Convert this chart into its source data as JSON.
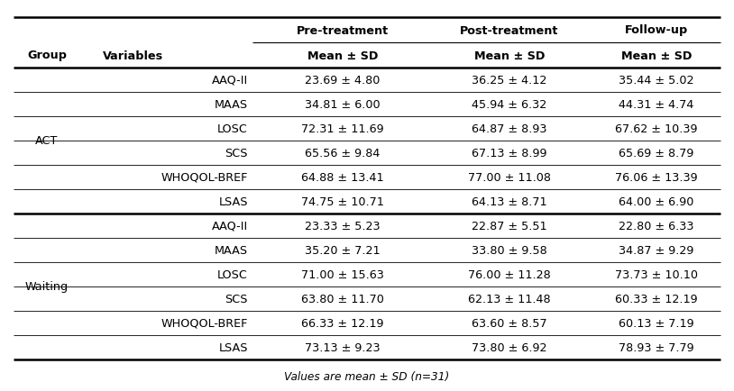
{
  "col_headers_line1": [
    "Pre-treatment",
    "Post-treatment",
    "Follow-up"
  ],
  "col_headers_line2_left": [
    "Group",
    "Variables"
  ],
  "col_headers_line2_right": [
    "Mean ± SD",
    "Mean ± SD",
    "Mean ± SD"
  ],
  "groups": [
    {
      "group_label": "ACT",
      "rows": [
        [
          "AAQ-II",
          "23.69 ± 4.80",
          "36.25 ± 4.12",
          "35.44 ± 5.02"
        ],
        [
          "MAAS",
          "34.81 ± 6.00",
          "45.94 ± 6.32",
          "44.31 ± 4.74"
        ],
        [
          "LOSC",
          "72.31 ± 11.69",
          "64.87 ± 8.93",
          "67.62 ± 10.39"
        ],
        [
          "SCS",
          "65.56 ± 9.84",
          "67.13 ± 8.99",
          "65.69 ± 8.79"
        ],
        [
          "WHOQOL-BREF",
          "64.88 ± 13.41",
          "77.00 ± 11.08",
          "76.06 ± 13.39"
        ],
        [
          "LSAS",
          "74.75 ± 10.71",
          "64.13 ± 8.71",
          "64.00 ± 6.90"
        ]
      ]
    },
    {
      "group_label": "Waiting",
      "rows": [
        [
          "AAQ-II",
          "23.33 ± 5.23",
          "22.87 ± 5.51",
          "22.80 ± 6.33"
        ],
        [
          "MAAS",
          "35.20 ± 7.21",
          "33.80 ± 9.58",
          "34.87 ± 9.29"
        ],
        [
          "LOSC",
          "71.00 ± 15.63",
          "76.00 ± 11.28",
          "73.73 ± 10.10"
        ],
        [
          "SCS",
          "63.80 ± 11.70",
          "62.13 ± 11.48",
          "60.33 ± 12.19"
        ],
        [
          "WHOQOL-BREF",
          "66.33 ± 12.19",
          "63.60 ± 8.57",
          "60.13 ± 7.19"
        ],
        [
          "LSAS",
          "73.13 ± 9.23",
          "73.80 ± 6.92",
          "78.93 ± 7.79"
        ]
      ]
    }
  ],
  "footnote": "Values are mean ± SD (n=31)",
  "bg_color": "#ffffff",
  "text_color": "#000000",
  "font_size": 9.2,
  "header_font_size": 9.2
}
